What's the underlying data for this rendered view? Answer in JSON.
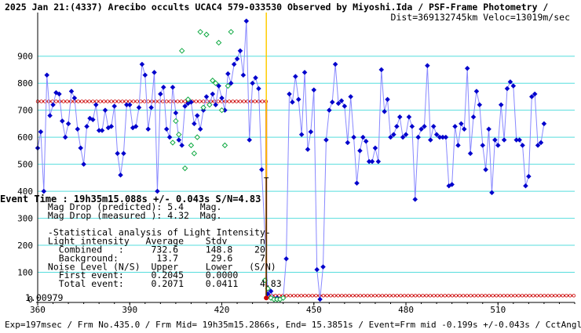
{
  "chart_data": {
    "type": "line",
    "title_line1": "2025 Jan 21:(4337) Arecibo occults UCAC4 579-033530 Observed by Miyoshi.Ida / PSF-Frame Photometry /",
    "title_line2": "Dist=369132745km Veloc=13019m/sec",
    "footer": "Exp=197msec / Frm No.435.0 / Frm Mid= 19h35m15.2866s, End= 15.3851s / Event=Frm mid -0.199s +/-0.043s / CctAngle=0.0deg",
    "y_ticks": [
      0,
      100,
      200,
      300,
      400,
      500,
      600,
      700,
      800,
      900
    ],
    "x_ticks": [
      360,
      390,
      420,
      450,
      480,
      510
    ],
    "xlim": [
      360,
      535
    ],
    "ylim": [
      0,
      1050
    ],
    "colors": {
      "observed": "#0000cc",
      "observed_line": "#8888ff",
      "estimated": "#11aa44",
      "model": "#cc0000",
      "event_line": "#ffcc00",
      "grid": "#55dddd"
    },
    "event": {
      "time_label": "Event Time : 19h35m15.088s  +/- 0.043s  S/N=4.83",
      "frame": 434.5,
      "error_bar": [
        5,
        450
      ]
    },
    "model": {
      "upper": 732.6,
      "lower": 13.7,
      "start": 360,
      "event_frame": 434.5,
      "end": 535
    },
    "first_value_label": "1.00979",
    "info_lines": [
      " Mag Drop (predicted): 5.4   Mag.",
      " Mag Drop (measured ): 4.32  Mag.",
      "",
      " -Statistical analysis of Light Intensity-",
      " Light intensity   Average    Stdv      n",
      "   Combined   :     732.6     148.8    20",
      "   Background:       13.7      29.6     7",
      " Noise Level (N/S)  Upper     Lower   (S/N)",
      "   First event:     0.2045    0.0000",
      "   Total event:     0.2071    0.0411    4.83"
    ],
    "observed": [
      [
        360,
        560
      ],
      [
        361,
        620
      ],
      [
        362,
        400
      ],
      [
        363,
        830
      ],
      [
        364,
        680
      ],
      [
        365,
        720
      ],
      [
        366,
        765
      ],
      [
        367,
        760
      ],
      [
        368,
        660
      ],
      [
        369,
        600
      ],
      [
        370,
        650
      ],
      [
        371,
        770
      ],
      [
        372,
        745
      ],
      [
        373,
        630
      ],
      [
        374,
        560
      ],
      [
        375,
        500
      ],
      [
        376,
        640
      ],
      [
        377,
        670
      ],
      [
        378,
        665
      ],
      [
        379,
        720
      ],
      [
        380,
        625
      ],
      [
        381,
        625
      ],
      [
        382,
        700
      ],
      [
        383,
        635
      ],
      [
        384,
        640
      ],
      [
        385,
        715
      ],
      [
        386,
        540
      ],
      [
        387,
        460
      ],
      [
        388,
        540
      ],
      [
        389,
        720
      ],
      [
        390,
        720
      ],
      [
        391,
        635
      ],
      [
        392,
        640
      ],
      [
        393,
        710
      ],
      [
        394,
        870
      ],
      [
        395,
        830
      ],
      [
        396,
        630
      ],
      [
        397,
        710
      ],
      [
        398,
        840
      ],
      [
        399,
        400
      ],
      [
        400,
        760
      ],
      [
        401,
        785
      ],
      [
        402,
        630
      ],
      [
        403,
        600
      ],
      [
        404,
        785
      ],
      [
        405,
        690
      ],
      [
        406,
        590
      ],
      [
        407,
        570
      ],
      [
        408,
        715
      ],
      [
        409,
        725
      ],
      [
        410,
        730
      ],
      [
        411,
        650
      ],
      [
        412,
        680
      ],
      [
        413,
        630
      ],
      [
        414,
        700
      ],
      [
        415,
        750
      ],
      [
        416,
        720
      ],
      [
        417,
        760
      ],
      [
        418,
        720
      ],
      [
        419,
        790
      ],
      [
        420,
        745
      ],
      [
        421,
        700
      ],
      [
        422,
        835
      ],
      [
        423,
        800
      ],
      [
        424,
        870
      ],
      [
        425,
        890
      ],
      [
        426,
        920
      ],
      [
        427,
        830
      ],
      [
        428,
        1030
      ],
      [
        429,
        590
      ],
      [
        430,
        800
      ],
      [
        431,
        820
      ],
      [
        432,
        780
      ],
      [
        433,
        480
      ],
      [
        435,
        20
      ],
      [
        436,
        30
      ],
      [
        437,
        0
      ],
      [
        438,
        5
      ],
      [
        439,
        0
      ],
      [
        440,
        5
      ],
      [
        441,
        150
      ],
      [
        442,
        760
      ],
      [
        443,
        730
      ],
      [
        444,
        825
      ],
      [
        445,
        740
      ],
      [
        446,
        610
      ],
      [
        447,
        840
      ],
      [
        448,
        555
      ],
      [
        449,
        620
      ],
      [
        450,
        775
      ],
      [
        451,
        110
      ],
      [
        452,
        0
      ],
      [
        453,
        120
      ],
      [
        454,
        590
      ],
      [
        455,
        700
      ],
      [
        456,
        730
      ],
      [
        457,
        870
      ],
      [
        458,
        725
      ],
      [
        459,
        735
      ],
      [
        460,
        715
      ],
      [
        461,
        580
      ],
      [
        462,
        750
      ],
      [
        463,
        600
      ],
      [
        464,
        430
      ],
      [
        465,
        550
      ],
      [
        466,
        600
      ],
      [
        467,
        585
      ],
      [
        468,
        510
      ],
      [
        469,
        510
      ],
      [
        470,
        560
      ],
      [
        471,
        510
      ],
      [
        472,
        850
      ],
      [
        473,
        695
      ],
      [
        474,
        740
      ],
      [
        475,
        600
      ],
      [
        476,
        610
      ],
      [
        477,
        640
      ],
      [
        478,
        675
      ],
      [
        479,
        600
      ],
      [
        480,
        610
      ],
      [
        481,
        675
      ],
      [
        482,
        640
      ],
      [
        483,
        370
      ],
      [
        484,
        600
      ],
      [
        485,
        630
      ],
      [
        486,
        640
      ],
      [
        487,
        865
      ],
      [
        488,
        590
      ],
      [
        489,
        640
      ],
      [
        490,
        610
      ],
      [
        491,
        600
      ],
      [
        492,
        600
      ],
      [
        493,
        600
      ],
      [
        494,
        420
      ],
      [
        495,
        425
      ],
      [
        496,
        640
      ],
      [
        497,
        570
      ],
      [
        498,
        650
      ],
      [
        499,
        630
      ],
      [
        500,
        855
      ],
      [
        501,
        540
      ],
      [
        502,
        675
      ],
      [
        503,
        770
      ],
      [
        504,
        720
      ],
      [
        505,
        570
      ],
      [
        506,
        480
      ],
      [
        507,
        630
      ],
      [
        508,
        395
      ],
      [
        509,
        590
      ],
      [
        510,
        570
      ],
      [
        511,
        720
      ],
      [
        512,
        590
      ],
      [
        513,
        780
      ],
      [
        514,
        805
      ],
      [
        515,
        790
      ],
      [
        516,
        590
      ],
      [
        517,
        590
      ],
      [
        518,
        570
      ],
      [
        519,
        420
      ],
      [
        520,
        455
      ],
      [
        521,
        750
      ],
      [
        522,
        760
      ],
      [
        523,
        570
      ],
      [
        524,
        580
      ],
      [
        525,
        650
      ]
    ],
    "estimated": [
      [
        404,
        580
      ],
      [
        405,
        660
      ],
      [
        406,
        610
      ],
      [
        407,
        920
      ],
      [
        408,
        485
      ],
      [
        409,
        740
      ],
      [
        410,
        570
      ],
      [
        411,
        540
      ],
      [
        412,
        600
      ],
      [
        413,
        990
      ],
      [
        414,
        710
      ],
      [
        415,
        980
      ],
      [
        416,
        720
      ],
      [
        417,
        810
      ],
      [
        418,
        800
      ],
      [
        419,
        950
      ],
      [
        420,
        700
      ],
      [
        421,
        570
      ],
      [
        422,
        790
      ],
      [
        423,
        990
      ],
      [
        434,
        70
      ],
      [
        435,
        40
      ],
      [
        436,
        5
      ],
      [
        437,
        0
      ],
      [
        438,
        0
      ],
      [
        439,
        0
      ],
      [
        440,
        5
      ]
    ]
  }
}
